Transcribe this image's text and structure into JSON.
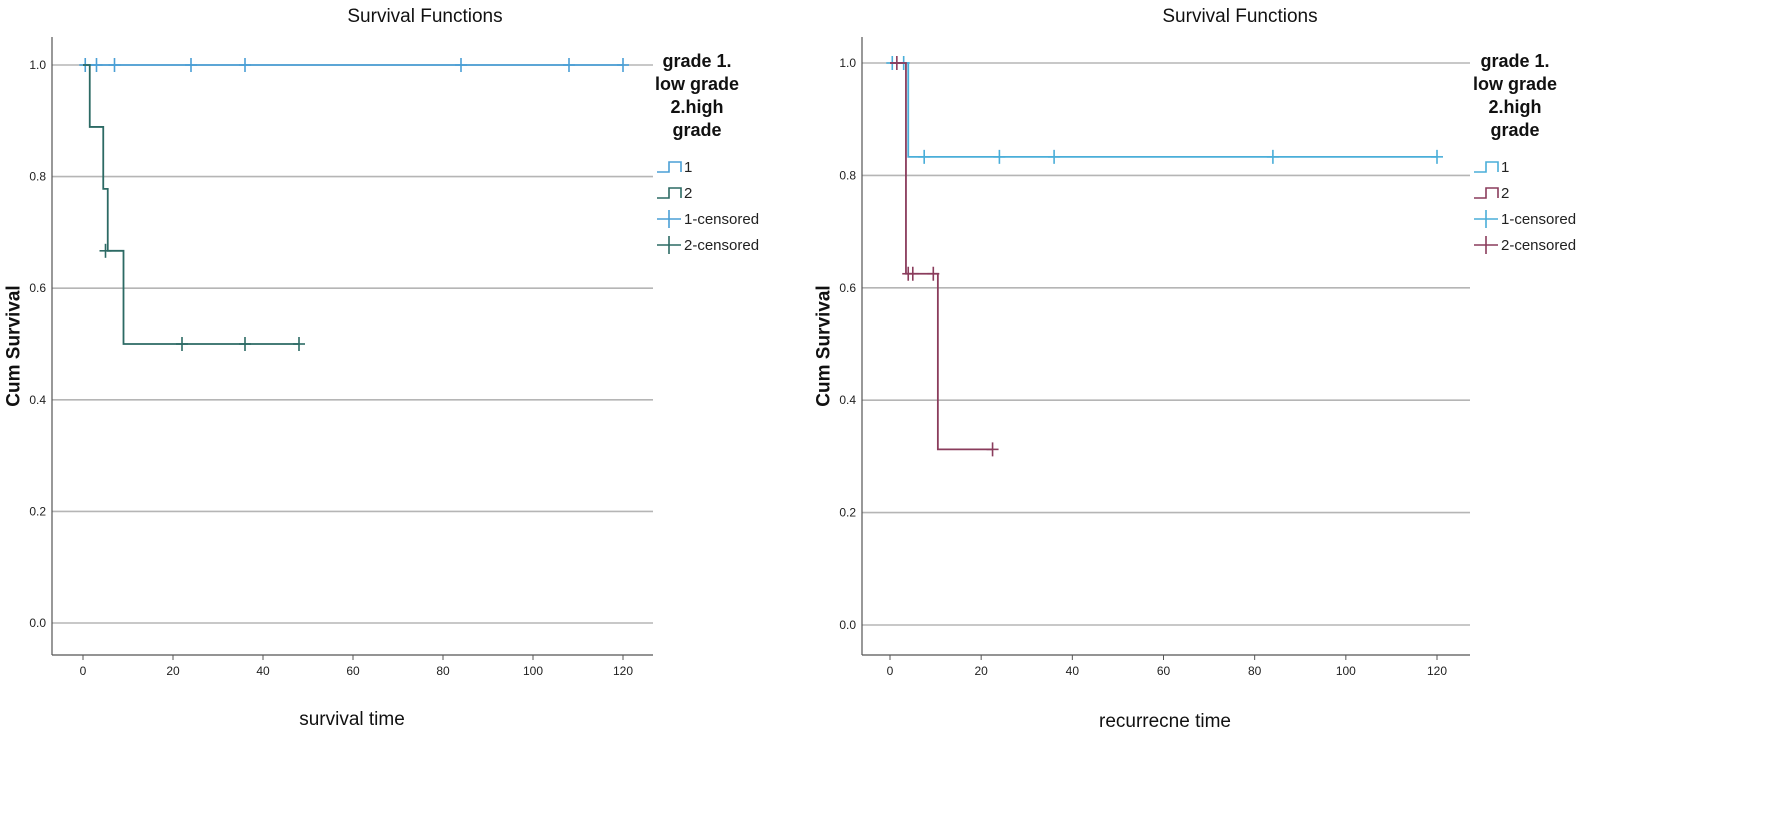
{
  "chart_data": [
    {
      "type": "line",
      "subtype": "kaplan-meier step",
      "title": "Survival Functions",
      "xlabel": "survival time",
      "ylabel": "Cum Survival",
      "xlim": [
        -7,
        125
      ],
      "ylim": [
        -0.05,
        1.05
      ],
      "xticks": [
        "0",
        "20",
        "40",
        "60",
        "80",
        "100",
        "120"
      ],
      "yticks": [
        "0.0",
        "0.2",
        "0.4",
        "0.6",
        "0.8",
        "1.0"
      ],
      "grid": "horizontal",
      "legend": {
        "title": [
          "grade 1.",
          "low grade",
          "2.high",
          "grade"
        ],
        "placement": "right",
        "entries": [
          "1",
          "2",
          "1-censored",
          "2-censored"
        ]
      },
      "series": [
        {
          "name": "1",
          "color": "#4a9fd5",
          "steps": [
            [
              0,
              1.0
            ],
            [
              120,
              1.0
            ]
          ],
          "censored": [
            [
              0.5,
              1.0
            ],
            [
              3,
              1.0
            ],
            [
              7,
              1.0
            ],
            [
              24,
              1.0
            ],
            [
              36,
              1.0
            ],
            [
              84,
              1.0
            ],
            [
              108,
              1.0
            ],
            [
              120,
              1.0
            ]
          ]
        },
        {
          "name": "2",
          "color": "#2c6a64",
          "steps": [
            [
              0,
              1.0
            ],
            [
              1.5,
              0.889
            ],
            [
              4.5,
              0.778
            ],
            [
              5.5,
              0.667
            ],
            [
              9,
              0.5
            ],
            [
              48,
              0.5
            ]
          ],
          "censored": [
            [
              5,
              0.667
            ],
            [
              22,
              0.5
            ],
            [
              36,
              0.5
            ],
            [
              48,
              0.5
            ]
          ]
        }
      ]
    },
    {
      "type": "line",
      "subtype": "kaplan-meier step",
      "title": "Survival Functions",
      "xlabel": "recurrecne time",
      "ylabel": "Cum Survival",
      "xlim": [
        -7,
        125
      ],
      "ylim": [
        -0.05,
        1.05
      ],
      "xticks": [
        "0",
        "20",
        "40",
        "60",
        "80",
        "100",
        "120"
      ],
      "yticks": [
        "0.0",
        "0.2",
        "0.4",
        "0.6",
        "0.8",
        "1.0"
      ],
      "grid": "horizontal",
      "legend": {
        "title": [
          "grade 1.",
          "low grade",
          "2.high",
          "grade"
        ],
        "placement": "right",
        "entries": [
          "1",
          "2",
          "1-censored",
          "2-censored"
        ]
      },
      "series": [
        {
          "name": "1",
          "color": "#4aaed9",
          "steps": [
            [
              0,
              1.0
            ],
            [
              4,
              0.833
            ],
            [
              120,
              0.833
            ]
          ],
          "censored": [
            [
              0.5,
              1.0
            ],
            [
              3,
              1.0
            ],
            [
              7.5,
              0.833
            ],
            [
              24,
              0.833
            ],
            [
              36,
              0.833
            ],
            [
              84,
              0.833
            ],
            [
              120,
              0.833
            ]
          ]
        },
        {
          "name": "2",
          "color": "#8a3c5c",
          "steps": [
            [
              0,
              1.0
            ],
            [
              3.5,
              0.625
            ],
            [
              10.5,
              0.3125
            ],
            [
              22.5,
              0.3125
            ]
          ],
          "censored": [
            [
              1.5,
              1.0
            ],
            [
              4,
              0.625
            ],
            [
              5,
              0.625
            ],
            [
              9.5,
              0.625
            ],
            [
              22.5,
              0.3125
            ]
          ]
        }
      ]
    }
  ]
}
